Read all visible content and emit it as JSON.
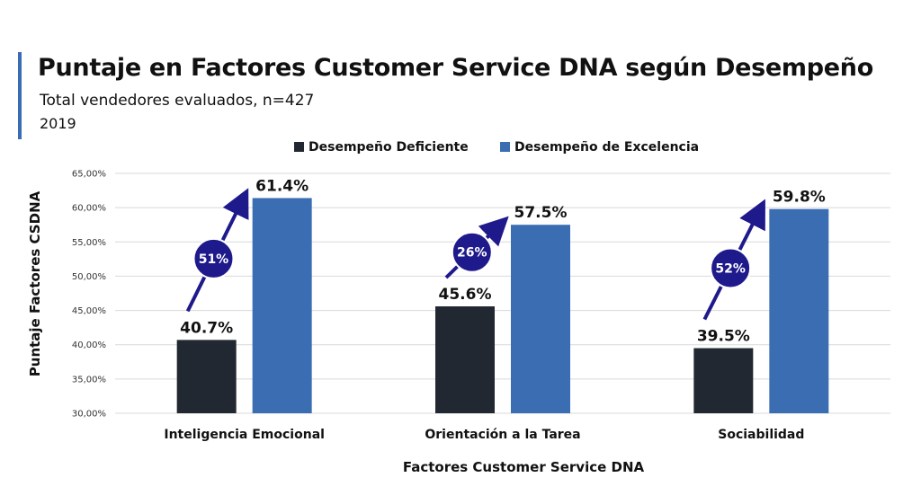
{
  "header": {
    "title": "Puntaje en Factores Customer Service DNA según Desempeño",
    "subtitle": "Total vendedores evaluados, n=427",
    "year": "2019"
  },
  "colors": {
    "accent": "#3a6cb4",
    "series_dark": "#222831",
    "series_blue": "#3b6db3",
    "arrow": "#1f1a8c",
    "badge": "#1f1a8c"
  },
  "chart_data": {
    "type": "bar",
    "categories": [
      "Inteligencia Emocional",
      "Orientación a la Tarea",
      "Sociabilidad"
    ],
    "series": [
      {
        "name": "Desempeño Deficiente",
        "values": [
          40.7,
          45.6,
          39.5
        ],
        "labels": [
          "40.7%",
          "45.6%",
          "39.5%"
        ],
        "color": "#222831"
      },
      {
        "name": "Desempeño de Excelencia",
        "values": [
          61.4,
          57.5,
          59.8
        ],
        "labels": [
          "61.4%",
          "57.5%",
          "59.8%"
        ],
        "color": "#3b6db3"
      }
    ],
    "increase_labels": [
      "51%",
      "26%",
      "52%"
    ],
    "xlabel": "Factores Customer Service DNA",
    "ylabel": "Puntaje Factores CSDNA",
    "ylim": [
      30,
      65
    ],
    "yticks": [
      30,
      35,
      40,
      45,
      50,
      55,
      60,
      65
    ],
    "ytick_labels": [
      "30,00%",
      "35,00%",
      "40,00%",
      "45,00%",
      "50,00%",
      "55,00%",
      "60,00%",
      "65,00%"
    ],
    "grid": true,
    "legend_position": "top-center"
  }
}
